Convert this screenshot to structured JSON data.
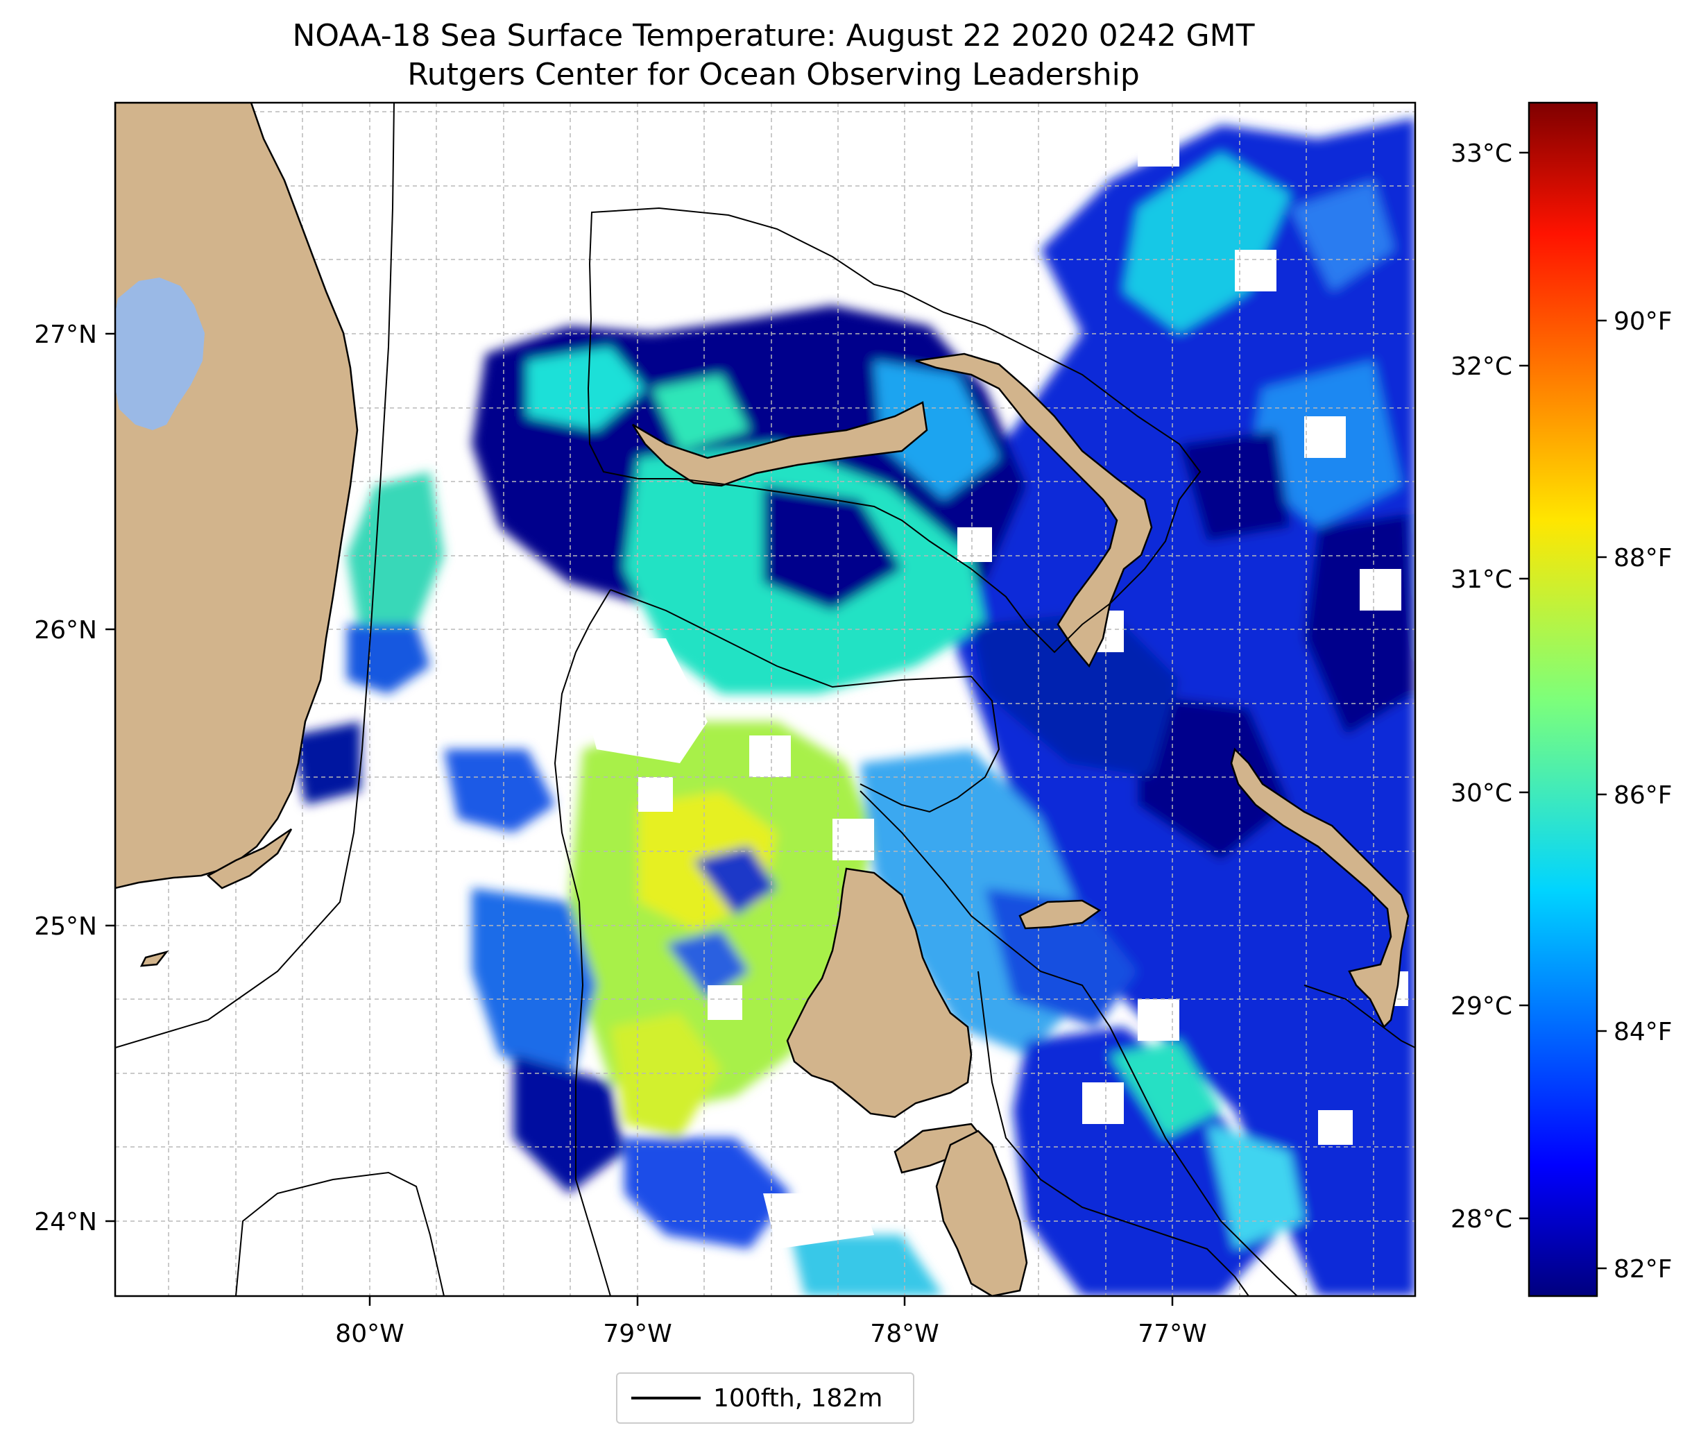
{
  "title": {
    "line1": "NOAA-18 Sea Surface Temperature: August 22 2020 0242 GMT",
    "line2": "Rutgers Center for Ocean Observing Leadership"
  },
  "map": {
    "lon_range": [
      -80.97,
      -76.1
    ],
    "lat_range": [
      23.73,
      27.8
    ],
    "lon_ticks": [
      {
        "value": -80,
        "label": "80°W"
      },
      {
        "value": -79,
        "label": "79°W"
      },
      {
        "value": -78,
        "label": "78°W"
      },
      {
        "value": -77,
        "label": "77°W"
      }
    ],
    "lat_ticks": [
      {
        "value": 24,
        "label": "24°N"
      },
      {
        "value": 25,
        "label": "25°N"
      },
      {
        "value": 26,
        "label": "26°N"
      },
      {
        "value": 27,
        "label": "27°N"
      }
    ],
    "gridlines": true,
    "land_color": "#d2b48c",
    "lake_color": "#9ab9e6",
    "missing_data_color": "#ffffff"
  },
  "colorbar": {
    "colormap": "jet",
    "min_c": 27.7,
    "max_c": 33.3,
    "celsius_ticks": [
      {
        "value": 28,
        "label": "28°C"
      },
      {
        "value": 29,
        "label": "29°C"
      },
      {
        "value": 30,
        "label": "30°C"
      },
      {
        "value": 31,
        "label": "31°C"
      },
      {
        "value": 32,
        "label": "32°C"
      },
      {
        "value": 33,
        "label": "33°C"
      }
    ],
    "fahrenheit_ticks": [
      {
        "value": 82,
        "label": "82°F"
      },
      {
        "value": 84,
        "label": "84°F"
      },
      {
        "value": 86,
        "label": "86°F"
      },
      {
        "value": 88,
        "label": "88°F"
      },
      {
        "value": 90,
        "label": "90°F"
      }
    ]
  },
  "legend": {
    "entries": [
      {
        "label": "100fth, 182m",
        "color": "#000000"
      }
    ]
  }
}
